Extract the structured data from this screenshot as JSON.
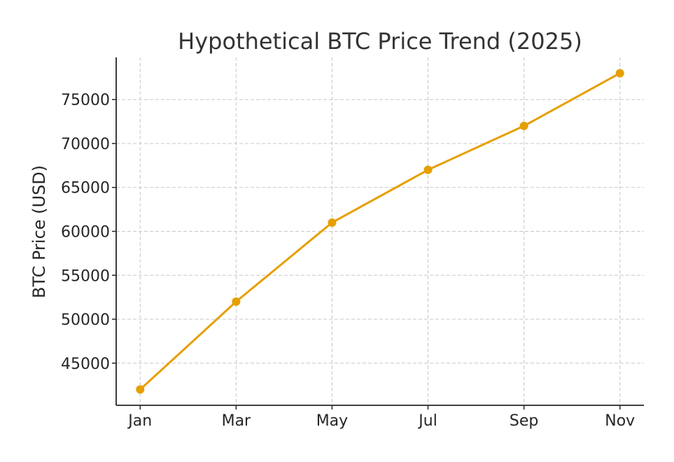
{
  "chart_data": {
    "type": "line",
    "title": "Hypothetical BTC Price Trend (2025)",
    "xlabel": "",
    "ylabel": "BTC Price (USD)",
    "categories": [
      "Jan",
      "Mar",
      "May",
      "Jul",
      "Sep",
      "Nov"
    ],
    "series": [
      {
        "name": "BTC Price",
        "values": [
          42000,
          52000,
          61000,
          67000,
          72000,
          78000
        ],
        "color": "#E69F00"
      }
    ],
    "yticks": [
      45000,
      50000,
      55000,
      60000,
      65000,
      70000,
      75000
    ],
    "ylim": [
      40200,
      79800
    ],
    "xlim": [
      -0.25,
      5.25
    ],
    "grid": true,
    "legend": "none"
  }
}
